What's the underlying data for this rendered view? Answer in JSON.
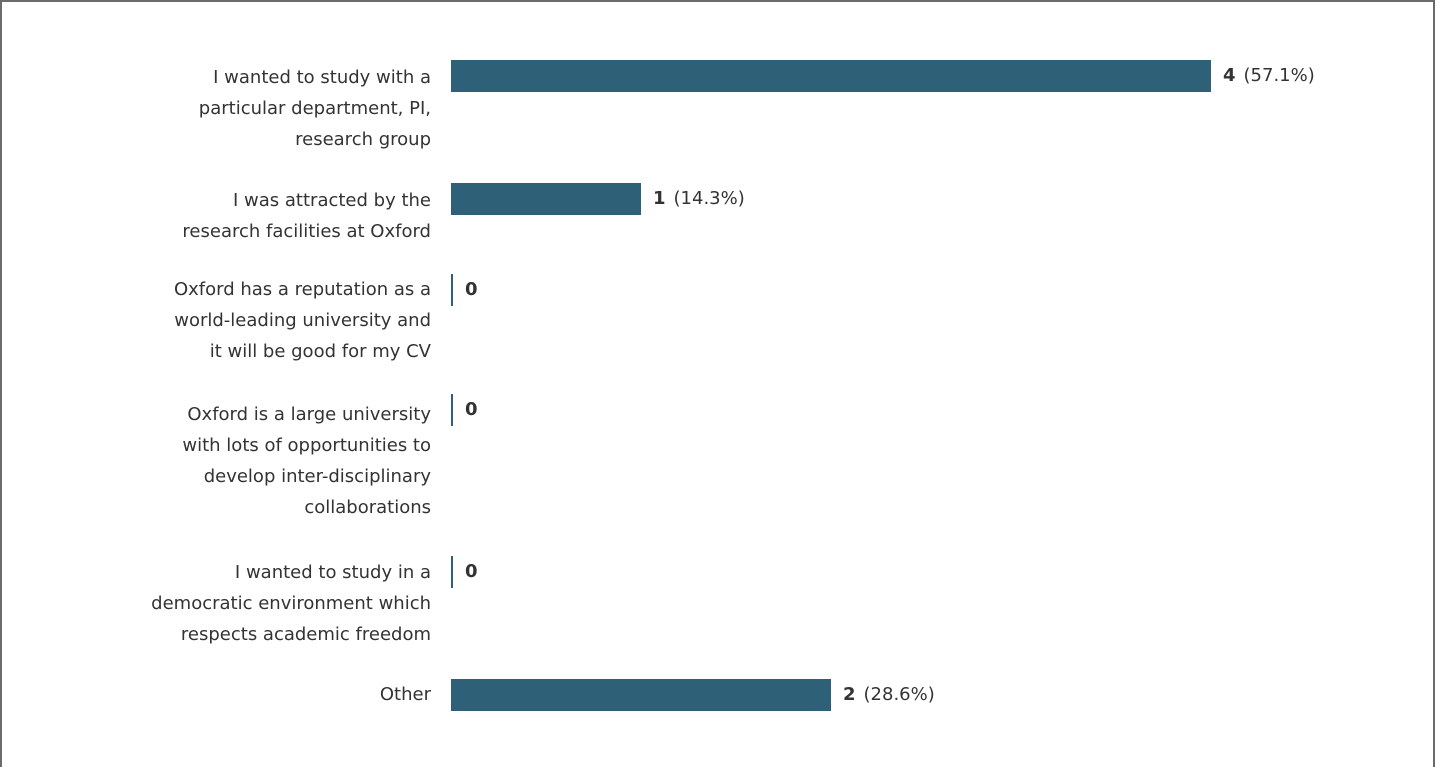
{
  "chart_data": {
    "type": "bar",
    "orientation": "horizontal",
    "categories": [
      "I wanted to study with a particular department, PI, research group",
      "I was attracted by the research facilities at Oxford",
      "Oxford has a reputation as a world-leading university and it will be good for my CV",
      "Oxford is a large university with lots of opportunities to develop inter-disciplinary collaborations",
      "I wanted to study in a democratic environment which respects academic freedom",
      "Other"
    ],
    "label_lines": [
      [
        "I wanted to study with a",
        "particular department, PI,",
        "research group"
      ],
      [
        "I was attracted by the",
        "research facilities at Oxford"
      ],
      [
        "Oxford has a reputation as a",
        "world-leading university and",
        "it will be good for my CV"
      ],
      [
        "Oxford is a large university",
        "with lots of opportunities to",
        "develop inter-disciplinary",
        "collaborations"
      ],
      [
        "I wanted to study in a",
        "democratic environment which",
        "respects academic freedom"
      ],
      [
        "Other"
      ]
    ],
    "values": [
      4,
      1,
      0,
      0,
      0,
      2
    ],
    "percent_labels": [
      "(57.1%)",
      "(14.3%)",
      "",
      "",
      "",
      "(28.6%)"
    ],
    "xlim": [
      0,
      4
    ],
    "bar_color": "#2e6078",
    "grid": false,
    "legend": "none"
  }
}
